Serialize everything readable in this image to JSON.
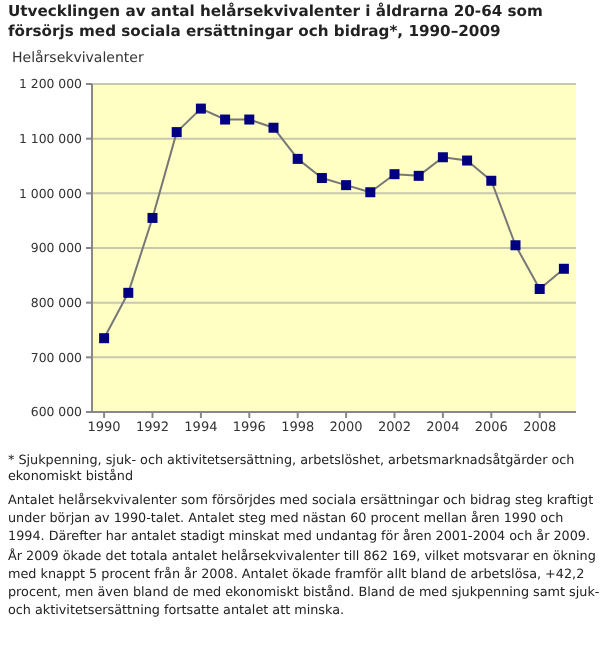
{
  "chart_data": {
    "type": "line",
    "title": "Utvecklingen av antal helårsekvivalenter i åldrarna 20-64 som försörjs med sociala ersättningar och bidrag*, 1990–2009",
    "ylabel": "Helårsekvivalenter",
    "x": [
      1990,
      1991,
      1992,
      1993,
      1994,
      1995,
      1996,
      1997,
      1998,
      1999,
      2000,
      2001,
      2002,
      2003,
      2004,
      2005,
      2006,
      2007,
      2008,
      2009
    ],
    "series": [
      {
        "color": "#000080",
        "values": [
          735000,
          818000,
          955000,
          1112000,
          1155000,
          1135000,
          1135000,
          1120000,
          1063000,
          1028000,
          1015000,
          1002000,
          1035000,
          1032000,
          1066000,
          1060000,
          1023000,
          905000,
          825000,
          862000
        ]
      }
    ],
    "xlim": [
      1989.5,
      2009.5
    ],
    "xticks": [
      1990,
      1992,
      1994,
      1996,
      1998,
      2000,
      2002,
      2004,
      2006,
      2008
    ],
    "ylim": [
      600000,
      1200000
    ],
    "yticks": [
      {
        "value": 600000,
        "label": "600 000"
      },
      {
        "value": 700000,
        "label": "700 000"
      },
      {
        "value": 800000,
        "label": "800 000"
      },
      {
        "value": 900000,
        "label": "900 000"
      },
      {
        "value": 1000000,
        "label": "1 000 000"
      },
      {
        "value": 1100000,
        "label": "1 100 000"
      },
      {
        "value": 1200000,
        "label": "1 200 000"
      }
    ],
    "grid": "y",
    "marker": "square",
    "line_style": "solid",
    "legend": false,
    "annotations": [
      "* Sjukpenning, sjuk- och aktivitetsersättning, arbetslöshet, arbetsmarknadsåtgärder och ekonomiskt bistånd",
      "Antalet helårsekvivalenter som försörjdes med sociala ersättningar och bidrag steg kraftigt under början av 1990-talet. Antalet steg med nästan 60 procent mellan åren 1990 och 1994. Därefter har antalet stadigt minskat med undantag för åren 2001-2004 och år 2009. År 2009 ökade det totala antalet helårsekvivalenter till 862 169, vilket motsvarar en ökning med knappt 5 procent från år 2008. Antalet ökade framför allt bland de arbetslösa, +42,2 procent, men även bland de med ekonomiskt bistånd. Bland de med sjukpenning samt sjuk- och aktivitetsersättning fortsatte antalet att minska."
    ]
  }
}
